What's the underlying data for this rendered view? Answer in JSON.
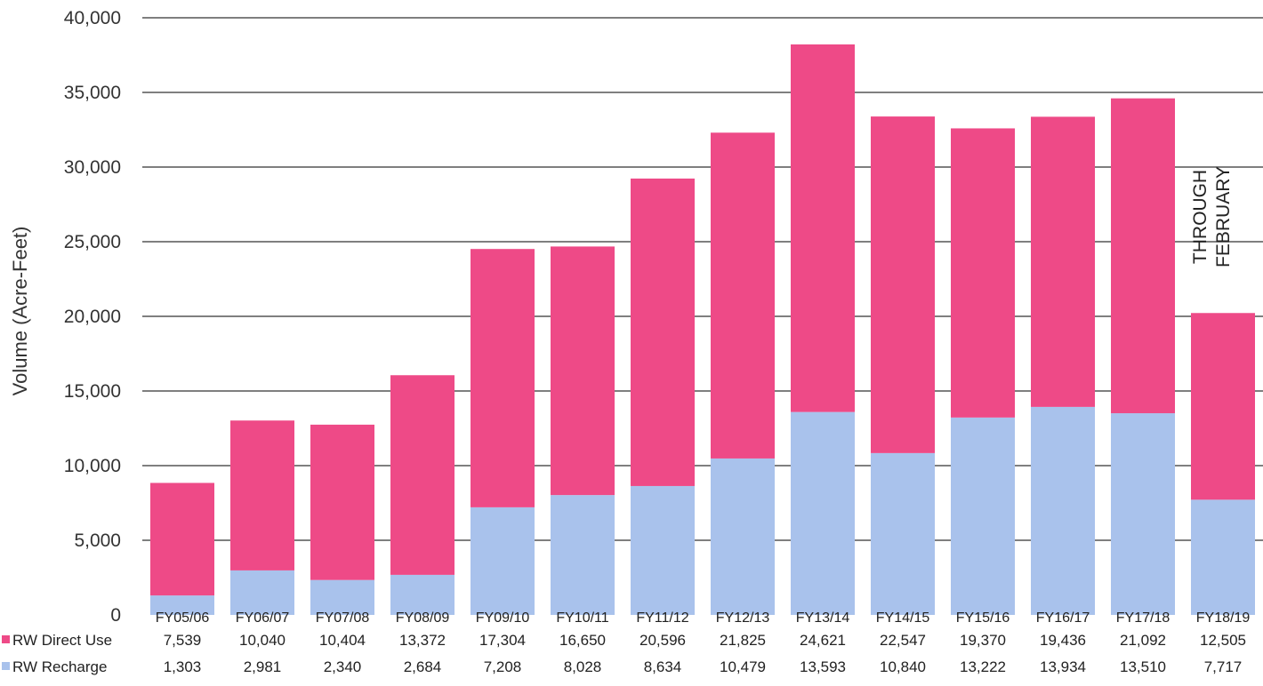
{
  "chart_data": {
    "type": "bar",
    "stacked": true,
    "title": "",
    "xlabel": "",
    "ylabel": "Volume (Acre-Feet)",
    "ylim": [
      0,
      40000
    ],
    "y_ticks": [
      "0",
      "5,000",
      "10,000",
      "15,000",
      "20,000",
      "25,000",
      "30,000",
      "35,000",
      "40,000"
    ],
    "grid": true,
    "legend": "bottom-left, inside data table",
    "categories": [
      "FY05/06",
      "FY06/07",
      "FY07/08",
      "FY08/09",
      "FY09/10",
      "FY10/11",
      "FY11/12",
      "FY12/13",
      "FY13/14",
      "FY14/15",
      "FY15/16",
      "FY16/17",
      "FY17/18",
      "FY18/19"
    ],
    "series": [
      {
        "name": "RW Recharge",
        "color": "#a9c2ec",
        "values": [
          1303,
          2981,
          2340,
          2684,
          7208,
          8028,
          8634,
          10479,
          13593,
          10840,
          13222,
          13934,
          13510,
          7717
        ],
        "labels": [
          "1,303",
          "2,981",
          "2,340",
          "2,684",
          "7,208",
          "8,028",
          "8,634",
          "10,479",
          "13,593",
          "10,840",
          "13,222",
          "13,934",
          "13,510",
          "7,717"
        ]
      },
      {
        "name": "RW Direct Use",
        "color": "#ee4a87",
        "values": [
          7539,
          10040,
          10404,
          13372,
          17304,
          16650,
          20596,
          21825,
          24621,
          22547,
          19370,
          19436,
          21092,
          12505
        ],
        "labels": [
          "7,539",
          "10,040",
          "10,404",
          "13,372",
          "17,304",
          "16,650",
          "20,596",
          "21,825",
          "24,621",
          "22,547",
          "19,370",
          "19,436",
          "21,092",
          "12,505"
        ]
      }
    ],
    "annotations": [
      {
        "text_line1": "THROUGH",
        "text_line2": "FEBRUARY",
        "category": "FY18/19"
      }
    ]
  }
}
